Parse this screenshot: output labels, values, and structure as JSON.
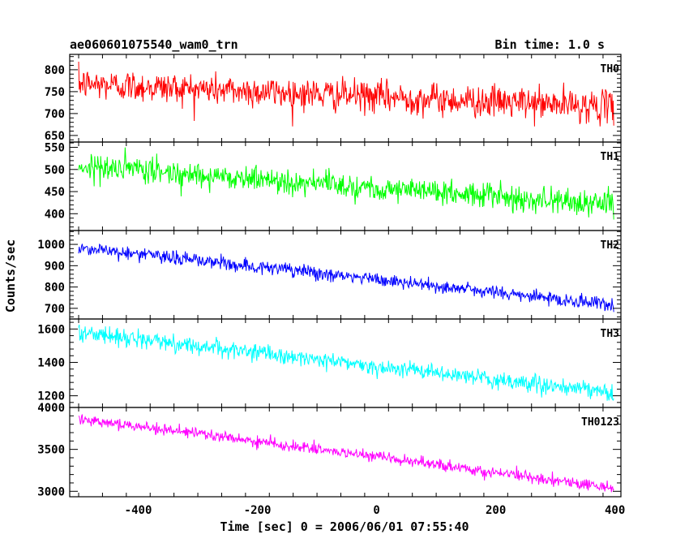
{
  "chart_data": {
    "type": "line",
    "title_left": "ae060601075540_wam0_trn",
    "title_right": "Bin time: 1.0 s",
    "xlabel": "Time [sec] 0 = 2006/06/01 07:55:40",
    "ylabel": "Counts/sec",
    "xlim": [
      -515,
      410
    ],
    "x_ticks": [
      -400,
      -200,
      0,
      200,
      400
    ],
    "x_range": [
      -500,
      398
    ],
    "bin_time": 1.0,
    "panels": [
      {
        "name": "TH0",
        "color": "#ff0000",
        "ylim": [
          635,
          835
        ],
        "y_ticks": [
          650,
          700,
          750,
          800
        ],
        "trend": [
          [
            -500,
            768
          ],
          [
            398,
            715
          ]
        ],
        "noise_amplitude": 33
      },
      {
        "name": "TH1",
        "color": "#00ff00",
        "ylim": [
          362,
          562
        ],
        "y_ticks": [
          400,
          450,
          500,
          550
        ],
        "trend": [
          [
            -500,
            508
          ],
          [
            398,
            420
          ]
        ],
        "noise_amplitude": 26
      },
      {
        "name": "TH2",
        "color": "#0000ff",
        "ylim": [
          650,
          1065
        ],
        "y_ticks": [
          700,
          800,
          900,
          1000
        ],
        "trend": [
          [
            -500,
            985
          ],
          [
            398,
            715
          ]
        ],
        "noise_amplitude": 30
      },
      {
        "name": "TH3",
        "color": "#00ffff",
        "ylim": [
          1130,
          1660
        ],
        "y_ticks": [
          1200,
          1400,
          1600
        ],
        "trend": [
          [
            -500,
            1580
          ],
          [
            398,
            1215
          ]
        ],
        "noise_amplitude": 45
      },
      {
        "name": "TH0123",
        "color": "#ff00ff",
        "ylim": [
          2935,
          4000
        ],
        "y_ticks": [
          3000,
          3500,
          4000
        ],
        "trend": [
          [
            -500,
            3870
          ],
          [
            398,
            3040
          ]
        ],
        "noise_amplitude": 60
      }
    ]
  }
}
